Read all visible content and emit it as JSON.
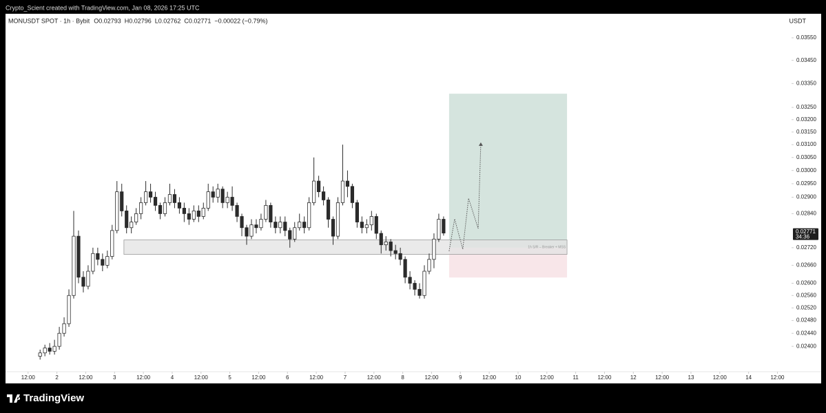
{
  "header": {
    "attribution": "Crypto_Scient created with TradingView.com, Jan 08, 2026 17:25 UTC"
  },
  "chart_data": {
    "type": "candlestick",
    "symbol_line": "MONUSDT SPOT · 1h · Bybit",
    "ohlc_legend": [
      "O0.02793",
      "H0.02796",
      "L0.02762",
      "C0.02771",
      "−0.00022 (−0.79%)"
    ],
    "currency": "USDT",
    "x": [
      17,
      19,
      21,
      23,
      25,
      27,
      29,
      31,
      33,
      35,
      37,
      39,
      41,
      43,
      45,
      47,
      49,
      51,
      53,
      55,
      57,
      59,
      61,
      63,
      65,
      67,
      69,
      71,
      73,
      75,
      77,
      79,
      81,
      83,
      85,
      87,
      89,
      91,
      93,
      95,
      97,
      99,
      101,
      103,
      105,
      107,
      109,
      111,
      113,
      115,
      117,
      119,
      121,
      123,
      125,
      127,
      129,
      131,
      133,
      135,
      137,
      139,
      141,
      143,
      145,
      147,
      149,
      151,
      153,
      155,
      157,
      159,
      161,
      163,
      165,
      167,
      169,
      171,
      173,
      175,
      177,
      179,
      181,
      183,
      185
    ],
    "open": [
      0.0237,
      0.0238,
      0.02395,
      0.02385,
      0.024,
      0.0244,
      0.0247,
      0.0256,
      0.0276,
      0.0262,
      0.0259,
      0.0264,
      0.027,
      0.0268,
      0.0266,
      0.0269,
      0.0278,
      0.0292,
      0.0285,
      0.0279,
      0.0281,
      0.0284,
      0.0288,
      0.0292,
      0.029,
      0.0287,
      0.0284,
      0.0288,
      0.0291,
      0.0288,
      0.0286,
      0.0284,
      0.0282,
      0.0285,
      0.0283,
      0.0286,
      0.0292,
      0.029,
      0.0293,
      0.0288,
      0.029,
      0.0287,
      0.0283,
      0.0279,
      0.0276,
      0.028,
      0.0279,
      0.0282,
      0.0287,
      0.0281,
      0.0279,
      0.0281,
      0.0278,
      0.0275,
      0.0279,
      0.0281,
      0.0279,
      0.0288,
      0.0296,
      0.0292,
      0.0289,
      0.0282,
      0.0276,
      0.0288,
      0.0296,
      0.0294,
      0.0288,
      0.0281,
      0.0279,
      0.028,
      0.0283,
      0.0277,
      0.0273,
      0.0274,
      0.0271,
      0.027,
      0.0268,
      0.0262,
      0.026,
      0.0258,
      0.0256,
      0.0264,
      0.0268,
      0.0275,
      0.0282
    ],
    "high": [
      0.0239,
      0.02405,
      0.0241,
      0.0242,
      0.0246,
      0.0249,
      0.0258,
      0.0285,
      0.0278,
      0.0264,
      0.0266,
      0.0272,
      0.0272,
      0.027,
      0.0271,
      0.028,
      0.0296,
      0.0295,
      0.0287,
      0.0283,
      0.0286,
      0.029,
      0.0296,
      0.0295,
      0.0292,
      0.0288,
      0.029,
      0.0295,
      0.0293,
      0.029,
      0.0288,
      0.0286,
      0.0287,
      0.0287,
      0.0288,
      0.0295,
      0.0294,
      0.0295,
      0.0294,
      0.0292,
      0.0294,
      0.0288,
      0.0284,
      0.028,
      0.0282,
      0.0282,
      0.0284,
      0.0289,
      0.0288,
      0.0283,
      0.0283,
      0.0283,
      0.0279,
      0.0281,
      0.0284,
      0.0283,
      0.029,
      0.0305,
      0.0298,
      0.0294,
      0.029,
      0.0283,
      0.029,
      0.031,
      0.03,
      0.0295,
      0.0289,
      0.0283,
      0.0282,
      0.0285,
      0.0284,
      0.0278,
      0.0276,
      0.0275,
      0.0273,
      0.0272,
      0.0269,
      0.0264,
      0.0261,
      0.026,
      0.0266,
      0.027,
      0.0277,
      0.0284,
      0.0283
    ],
    "low": [
      0.0236,
      0.0237,
      0.02375,
      0.02375,
      0.0239,
      0.0243,
      0.0246,
      0.0255,
      0.026,
      0.0257,
      0.0258,
      0.0263,
      0.0266,
      0.0264,
      0.0265,
      0.0268,
      0.0277,
      0.0283,
      0.0277,
      0.0277,
      0.028,
      0.0282,
      0.0287,
      0.0288,
      0.0285,
      0.0282,
      0.0283,
      0.0287,
      0.0286,
      0.0284,
      0.0281,
      0.028,
      0.0281,
      0.0281,
      0.0282,
      0.0285,
      0.0288,
      0.0288,
      0.0286,
      0.0286,
      0.0285,
      0.0281,
      0.0276,
      0.0273,
      0.0275,
      0.0277,
      0.0278,
      0.0281,
      0.0279,
      0.0277,
      0.0277,
      0.0276,
      0.0272,
      0.0274,
      0.0278,
      0.0277,
      0.0278,
      0.0287,
      0.029,
      0.0287,
      0.0279,
      0.0273,
      0.0275,
      0.0287,
      0.029,
      0.0286,
      0.0279,
      0.0277,
      0.0277,
      0.0278,
      0.0275,
      0.027,
      0.0271,
      0.0269,
      0.0268,
      0.0266,
      0.026,
      0.0258,
      0.0256,
      0.0255,
      0.0255,
      0.0263,
      0.0265,
      0.0274,
      0.02762
    ],
    "close": [
      0.0238,
      0.02395,
      0.02385,
      0.024,
      0.0244,
      0.0247,
      0.0256,
      0.0276,
      0.0262,
      0.0259,
      0.0264,
      0.027,
      0.0268,
      0.0266,
      0.0269,
      0.0278,
      0.0292,
      0.0285,
      0.0279,
      0.0281,
      0.0284,
      0.0288,
      0.0292,
      0.029,
      0.0287,
      0.0284,
      0.0288,
      0.0291,
      0.0288,
      0.0286,
      0.0284,
      0.0282,
      0.0285,
      0.0283,
      0.0286,
      0.0292,
      0.029,
      0.0293,
      0.0288,
      0.029,
      0.0287,
      0.0283,
      0.0279,
      0.0276,
      0.028,
      0.0279,
      0.0282,
      0.0287,
      0.0281,
      0.0279,
      0.0281,
      0.0278,
      0.0275,
      0.0279,
      0.0281,
      0.0279,
      0.0288,
      0.0296,
      0.0292,
      0.0289,
      0.0282,
      0.0276,
      0.0288,
      0.0296,
      0.0294,
      0.0288,
      0.0281,
      0.0279,
      0.028,
      0.0283,
      0.0277,
      0.0273,
      0.0274,
      0.0271,
      0.027,
      0.0268,
      0.0262,
      0.026,
      0.0258,
      0.0256,
      0.0264,
      0.0268,
      0.0275,
      0.0282,
      0.02771
    ],
    "up_color": "#ffffff",
    "down_color": "#2b2b2b",
    "wick_color": "#2b2b2b",
    "log_scale": true,
    "xlim": [
      2.6,
      329.6
    ],
    "ylim": [
      0.02324,
      0.0366
    ],
    "xticks": [
      {
        "value": 12,
        "label": "12:00"
      },
      {
        "value": 24,
        "label": "2"
      },
      {
        "value": 36,
        "label": "12:00"
      },
      {
        "value": 48,
        "label": "3"
      },
      {
        "value": 60,
        "label": "12:00"
      },
      {
        "value": 72,
        "label": "4"
      },
      {
        "value": 84,
        "label": "12:00"
      },
      {
        "value": 96,
        "label": "5"
      },
      {
        "value": 108,
        "label": "12:00"
      },
      {
        "value": 120,
        "label": "6"
      },
      {
        "value": 132,
        "label": "12:00"
      },
      {
        "value": 144,
        "label": "7"
      },
      {
        "value": 156,
        "label": "12:00"
      },
      {
        "value": 168,
        "label": "8"
      },
      {
        "value": 180,
        "label": "12:00"
      },
      {
        "value": 192,
        "label": "9"
      },
      {
        "value": 204,
        "label": "12:00"
      },
      {
        "value": 216,
        "label": "10"
      },
      {
        "value": 228,
        "label": "12:00"
      },
      {
        "value": 240,
        "label": "11"
      },
      {
        "value": 252,
        "label": "12:00"
      },
      {
        "value": 264,
        "label": "12"
      },
      {
        "value": 276,
        "label": "12:00"
      },
      {
        "value": 288,
        "label": "13"
      },
      {
        "value": 300,
        "label": "12:00"
      },
      {
        "value": 312,
        "label": "14"
      },
      {
        "value": 324,
        "label": "12:00"
      }
    ],
    "yticks": [
      {
        "value": 0.0355,
        "label": "0.03550"
      },
      {
        "value": 0.0345,
        "label": "0.03450"
      },
      {
        "value": 0.0335,
        "label": "0.03350"
      },
      {
        "value": 0.0325,
        "label": "0.03250"
      },
      {
        "value": 0.032,
        "label": "0.03200"
      },
      {
        "value": 0.0315,
        "label": "0.03150"
      },
      {
        "value": 0.031,
        "label": "0.03100"
      },
      {
        "value": 0.0305,
        "label": "0.03050"
      },
      {
        "value": 0.03,
        "label": "0.03000"
      },
      {
        "value": 0.0295,
        "label": "0.02950"
      },
      {
        "value": 0.029,
        "label": "0.02900"
      },
      {
        "value": 0.0284,
        "label": "0.02840"
      },
      {
        "value": 0.0272,
        "label": "0.02720"
      },
      {
        "value": 0.0266,
        "label": "0.02660"
      },
      {
        "value": 0.026,
        "label": "0.02600"
      },
      {
        "value": 0.0256,
        "label": "0.02560"
      },
      {
        "value": 0.0252,
        "label": "0.02520"
      },
      {
        "value": 0.0248,
        "label": "0.02480"
      },
      {
        "value": 0.0244,
        "label": "0.02440"
      },
      {
        "value": 0.024,
        "label": "0.02400"
      }
    ],
    "last_price": {
      "value": 0.02771,
      "label": "0.02771"
    },
    "countdown": "34:36",
    "zone": {
      "label": "1h S/R – Breaker + MSS",
      "x": [
        51.9,
        236.4
      ],
      "y": [
        0.02697,
        0.02747
      ],
      "color": "#e3e3e3"
    },
    "position": {
      "x": [
        187.3,
        236.4
      ],
      "target": 0.03307,
      "entry": 0.0272,
      "stop": 0.02619,
      "profit_color": "#d5e4de",
      "loss_color": "#f8e6e9"
    },
    "projection": {
      "x": [
        187.3,
        189.6,
        193.0,
        195.4,
        199.4,
        200.5
      ],
      "y": [
        0.02708,
        0.02821,
        0.02715,
        0.02896,
        0.02787,
        0.03106
      ]
    }
  },
  "footer": {
    "logo": "TradingView"
  }
}
